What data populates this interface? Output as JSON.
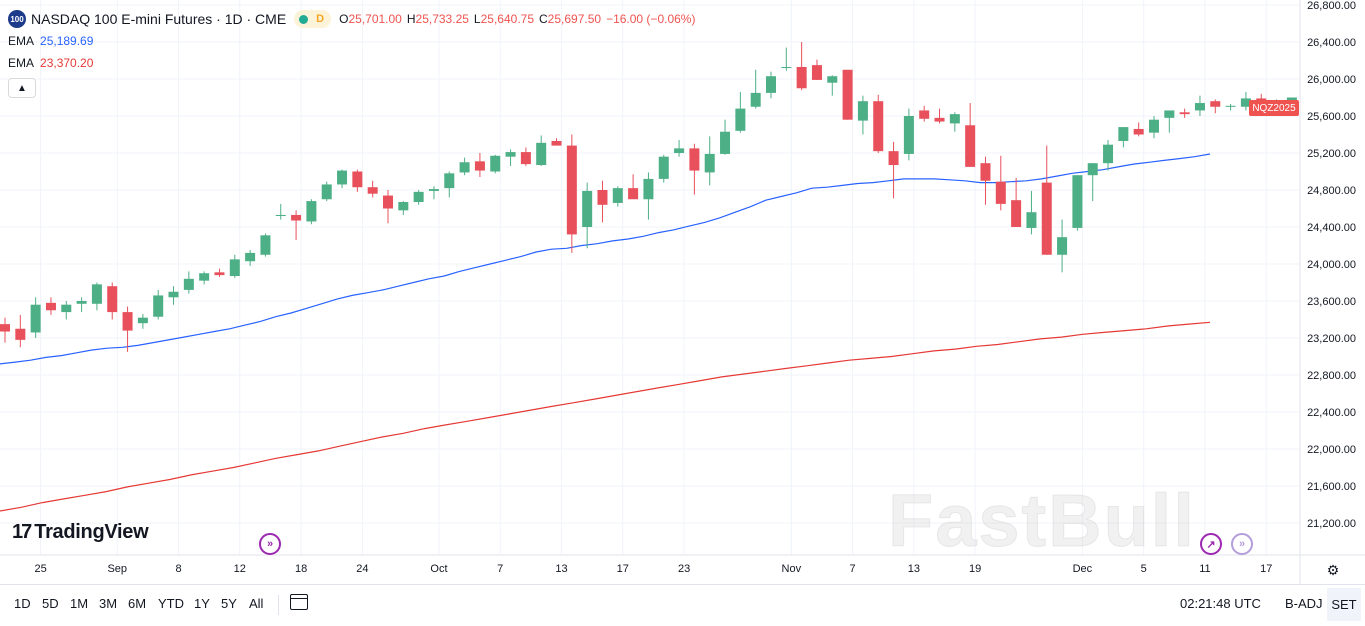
{
  "header": {
    "symbol_badge": "100",
    "title": "NASDAQ 100 E-mini Futures · 1D · CME",
    "status_letter": "D",
    "ohlc": {
      "open_key": "O",
      "open": "25,701.00",
      "high_key": "H",
      "high": "25,733.25",
      "low_key": "L",
      "low": "25,640.75",
      "close_key": "C",
      "close": "25,697.50",
      "change": "−16.00 (−0.06%)"
    },
    "indicators": [
      {
        "name": "EMA",
        "value": "25,189.69",
        "color": "#2962ff"
      },
      {
        "name": "EMA",
        "value": "23,370.20",
        "color": "#e53935"
      }
    ]
  },
  "price_tag": {
    "label": "NQZ2025",
    "color": "#ef5350"
  },
  "logo": {
    "mark": "17",
    "text": "TradingView"
  },
  "watermark": "FastBull",
  "colors": {
    "up": "#4caf86",
    "down": "#e8505b",
    "grid": "#f0f3fa",
    "ema_short": "#2962ff",
    "ema_long": "#e53935"
  },
  "bottom_bar": {
    "timeframes": [
      "1D",
      "5D",
      "1M",
      "3M",
      "6M",
      "YTD",
      "1Y",
      "5Y",
      "All"
    ],
    "clock": "02:21:48 UTC",
    "adj": "B-ADJ",
    "session": "SET"
  },
  "chart_data": {
    "type": "candlestick",
    "y_ticks": [
      21200,
      21600,
      22000,
      22400,
      22800,
      23200,
      23600,
      24000,
      24400,
      24800,
      25200,
      25600,
      26000,
      26400,
      26800
    ],
    "y_tick_labels": [
      "21,200.00",
      "21,600.00",
      "22,000.00",
      "22,400.00",
      "22,800.00",
      "23,200.00",
      "23,600.00",
      "24,000.00",
      "24,400.00",
      "24,800.00",
      "25,200.00",
      "25,600.00",
      "26,000.00",
      "26,400.00",
      "26,800.00"
    ],
    "x_ticks": [
      {
        "label": "25",
        "bar": 2
      },
      {
        "label": "Sep",
        "bar": 7
      },
      {
        "label": "8",
        "bar": 11
      },
      {
        "label": "12",
        "bar": 15
      },
      {
        "label": "18",
        "bar": 19
      },
      {
        "label": "24",
        "bar": 23
      },
      {
        "label": "Oct",
        "bar": 28
      },
      {
        "label": "7",
        "bar": 32
      },
      {
        "label": "13",
        "bar": 36
      },
      {
        "label": "17",
        "bar": 40
      },
      {
        "label": "23",
        "bar": 44
      },
      {
        "label": "Nov",
        "bar": 51
      },
      {
        "label": "7",
        "bar": 55
      },
      {
        "label": "13",
        "bar": 59
      },
      {
        "label": "19",
        "bar": 63
      },
      {
        "label": "Dec",
        "bar": 70
      },
      {
        "label": "5",
        "bar": 74
      },
      {
        "label": "11",
        "bar": 78
      },
      {
        "label": "17",
        "bar": 82
      }
    ],
    "bar_spacing_days": 1,
    "candles": [
      [
        23350,
        23420,
        23150,
        23270
      ],
      [
        23300,
        23450,
        23100,
        23180
      ],
      [
        23260,
        23640,
        23200,
        23560
      ],
      [
        23580,
        23640,
        23450,
        23500
      ],
      [
        23480,
        23600,
        23400,
        23560
      ],
      [
        23570,
        23640,
        23480,
        23600
      ],
      [
        23570,
        23800,
        23500,
        23780
      ],
      [
        23760,
        23800,
        23400,
        23480
      ],
      [
        23480,
        23540,
        23050,
        23280
      ],
      [
        23360,
        23460,
        23300,
        23420
      ],
      [
        23430,
        23720,
        23400,
        23660
      ],
      [
        23640,
        23760,
        23560,
        23700
      ],
      [
        23720,
        23920,
        23680,
        23840
      ],
      [
        23820,
        23920,
        23780,
        23900
      ],
      [
        23910,
        23950,
        23860,
        23880
      ],
      [
        23870,
        24100,
        23850,
        24050
      ],
      [
        24030,
        24150,
        23980,
        24120
      ],
      [
        24100,
        24330,
        24080,
        24310
      ],
      [
        24520,
        24650,
        24480,
        24530
      ],
      [
        24530,
        24580,
        24260,
        24470
      ],
      [
        24460,
        24700,
        24430,
        24680
      ],
      [
        24700,
        24890,
        24680,
        24860
      ],
      [
        24860,
        25020,
        24820,
        25010
      ],
      [
        25000,
        25020,
        24780,
        24830
      ],
      [
        24830,
        24900,
        24720,
        24760
      ],
      [
        24740,
        24800,
        24440,
        24600
      ],
      [
        24580,
        24680,
        24530,
        24670
      ],
      [
        24670,
        24800,
        24640,
        24780
      ],
      [
        24790,
        24840,
        24700,
        24810
      ],
      [
        24820,
        25000,
        24720,
        24980
      ],
      [
        24990,
        25150,
        24960,
        25100
      ],
      [
        25110,
        25200,
        24940,
        25010
      ],
      [
        25000,
        25180,
        24980,
        25170
      ],
      [
        25160,
        25240,
        25060,
        25210
      ],
      [
        25210,
        25260,
        25060,
        25080
      ],
      [
        25070,
        25390,
        25060,
        25310
      ],
      [
        25330,
        25360,
        25280,
        25280
      ],
      [
        25280,
        25400,
        24120,
        24320
      ],
      [
        24400,
        24880,
        24170,
        24790
      ],
      [
        24800,
        24900,
        24450,
        24640
      ],
      [
        24660,
        24840,
        24620,
        24820
      ],
      [
        24820,
        24970,
        24730,
        24700
      ],
      [
        24700,
        24990,
        24480,
        24920
      ],
      [
        24920,
        25180,
        24880,
        25160
      ],
      [
        25200,
        25340,
        25160,
        25250
      ],
      [
        25250,
        25300,
        24750,
        25010
      ],
      [
        24990,
        25380,
        24850,
        25190
      ],
      [
        25190,
        25560,
        25180,
        25430
      ],
      [
        25440,
        25860,
        25420,
        25680
      ],
      [
        25700,
        26100,
        25680,
        25850
      ],
      [
        25850,
        26080,
        25790,
        26030
      ],
      [
        26120,
        26340,
        26090,
        26130
      ],
      [
        26130,
        26400,
        25880,
        25900
      ],
      [
        26150,
        26210,
        25990,
        25990
      ],
      [
        25960,
        26040,
        25820,
        26030
      ],
      [
        26100,
        26080,
        25560,
        25560
      ],
      [
        25550,
        25820,
        25400,
        25760
      ],
      [
        25760,
        25830,
        25200,
        25220
      ],
      [
        25220,
        25320,
        24710,
        25070
      ],
      [
        25190,
        25680,
        25120,
        25600
      ],
      [
        25660,
        25710,
        25540,
        25570
      ],
      [
        25580,
        25680,
        25520,
        25540
      ],
      [
        25520,
        25640,
        25430,
        25620
      ],
      [
        25500,
        25740,
        25050,
        25050
      ],
      [
        25090,
        25160,
        24640,
        24900
      ],
      [
        24890,
        25170,
        24580,
        24650
      ],
      [
        24690,
        24930,
        24410,
        24400
      ],
      [
        24390,
        24790,
        24320,
        24560
      ],
      [
        24880,
        25280,
        24100,
        24100
      ],
      [
        24100,
        24480,
        23910,
        24290
      ],
      [
        24390,
        24960,
        24360,
        24960
      ],
      [
        24960,
        25090,
        24680,
        25090
      ],
      [
        25090,
        25340,
        25010,
        25290
      ],
      [
        25330,
        25480,
        25260,
        25480
      ],
      [
        25460,
        25530,
        25380,
        25400
      ],
      [
        25420,
        25600,
        25360,
        25560
      ],
      [
        25580,
        25620,
        25420,
        25660
      ],
      [
        25640,
        25680,
        25580,
        25620
      ],
      [
        25660,
        25820,
        25600,
        25740
      ],
      [
        25760,
        25780,
        25630,
        25700
      ],
      [
        25700,
        25730,
        25660,
        25710
      ],
      [
        25700,
        25860,
        25660,
        25790
      ],
      [
        25790,
        25840,
        25720,
        25720
      ],
      [
        25680,
        25780,
        25640,
        25700
      ],
      [
        25710,
        25780,
        25600,
        25800
      ],
      [
        25800,
        25850,
        25660,
        25720
      ],
      [
        25701,
        25733,
        25640,
        25697
      ]
    ],
    "ema_short": [
      22920,
      22940,
      22960,
      22990,
      23010,
      23040,
      23070,
      23090,
      23100,
      23120,
      23150,
      23180,
      23210,
      23240,
      23270,
      23300,
      23340,
      23380,
      23430,
      23470,
      23520,
      23570,
      23620,
      23660,
      23690,
      23720,
      23760,
      23800,
      23840,
      23870,
      23920,
      23960,
      24000,
      24040,
      24080,
      24130,
      24160,
      24170,
      24200,
      24220,
      24250,
      24270,
      24300,
      24340,
      24370,
      24410,
      24450,
      24500,
      24560,
      24620,
      24690,
      24730,
      24770,
      24820,
      24830,
      24850,
      24870,
      24880,
      24900,
      24920,
      24920,
      24920,
      24910,
      24900,
      24880,
      24880,
      24890,
      24900,
      24920,
      24950,
      24980,
      25000,
      25020,
      25050,
      25080,
      25100,
      25120,
      25140,
      25160,
      25189
    ],
    "ema_long": [
      21330,
      21370,
      21420,
      21460,
      21500,
      21540,
      21590,
      21630,
      21670,
      21720,
      21760,
      21800,
      21850,
      21900,
      21940,
      21980,
      22030,
      22080,
      22130,
      22170,
      22220,
      22260,
      22300,
      22340,
      22380,
      22420,
      22460,
      22500,
      22540,
      22580,
      22620,
      22660,
      22700,
      22740,
      22780,
      22810,
      22840,
      22870,
      22900,
      22930,
      22960,
      22980,
      23000,
      23030,
      23060,
      23080,
      23110,
      23130,
      23160,
      23190,
      23210,
      23240,
      23260,
      23280,
      23300,
      23330,
      23350,
      23370
    ],
    "ylim": [
      21000,
      26900
    ],
    "grid": true
  }
}
